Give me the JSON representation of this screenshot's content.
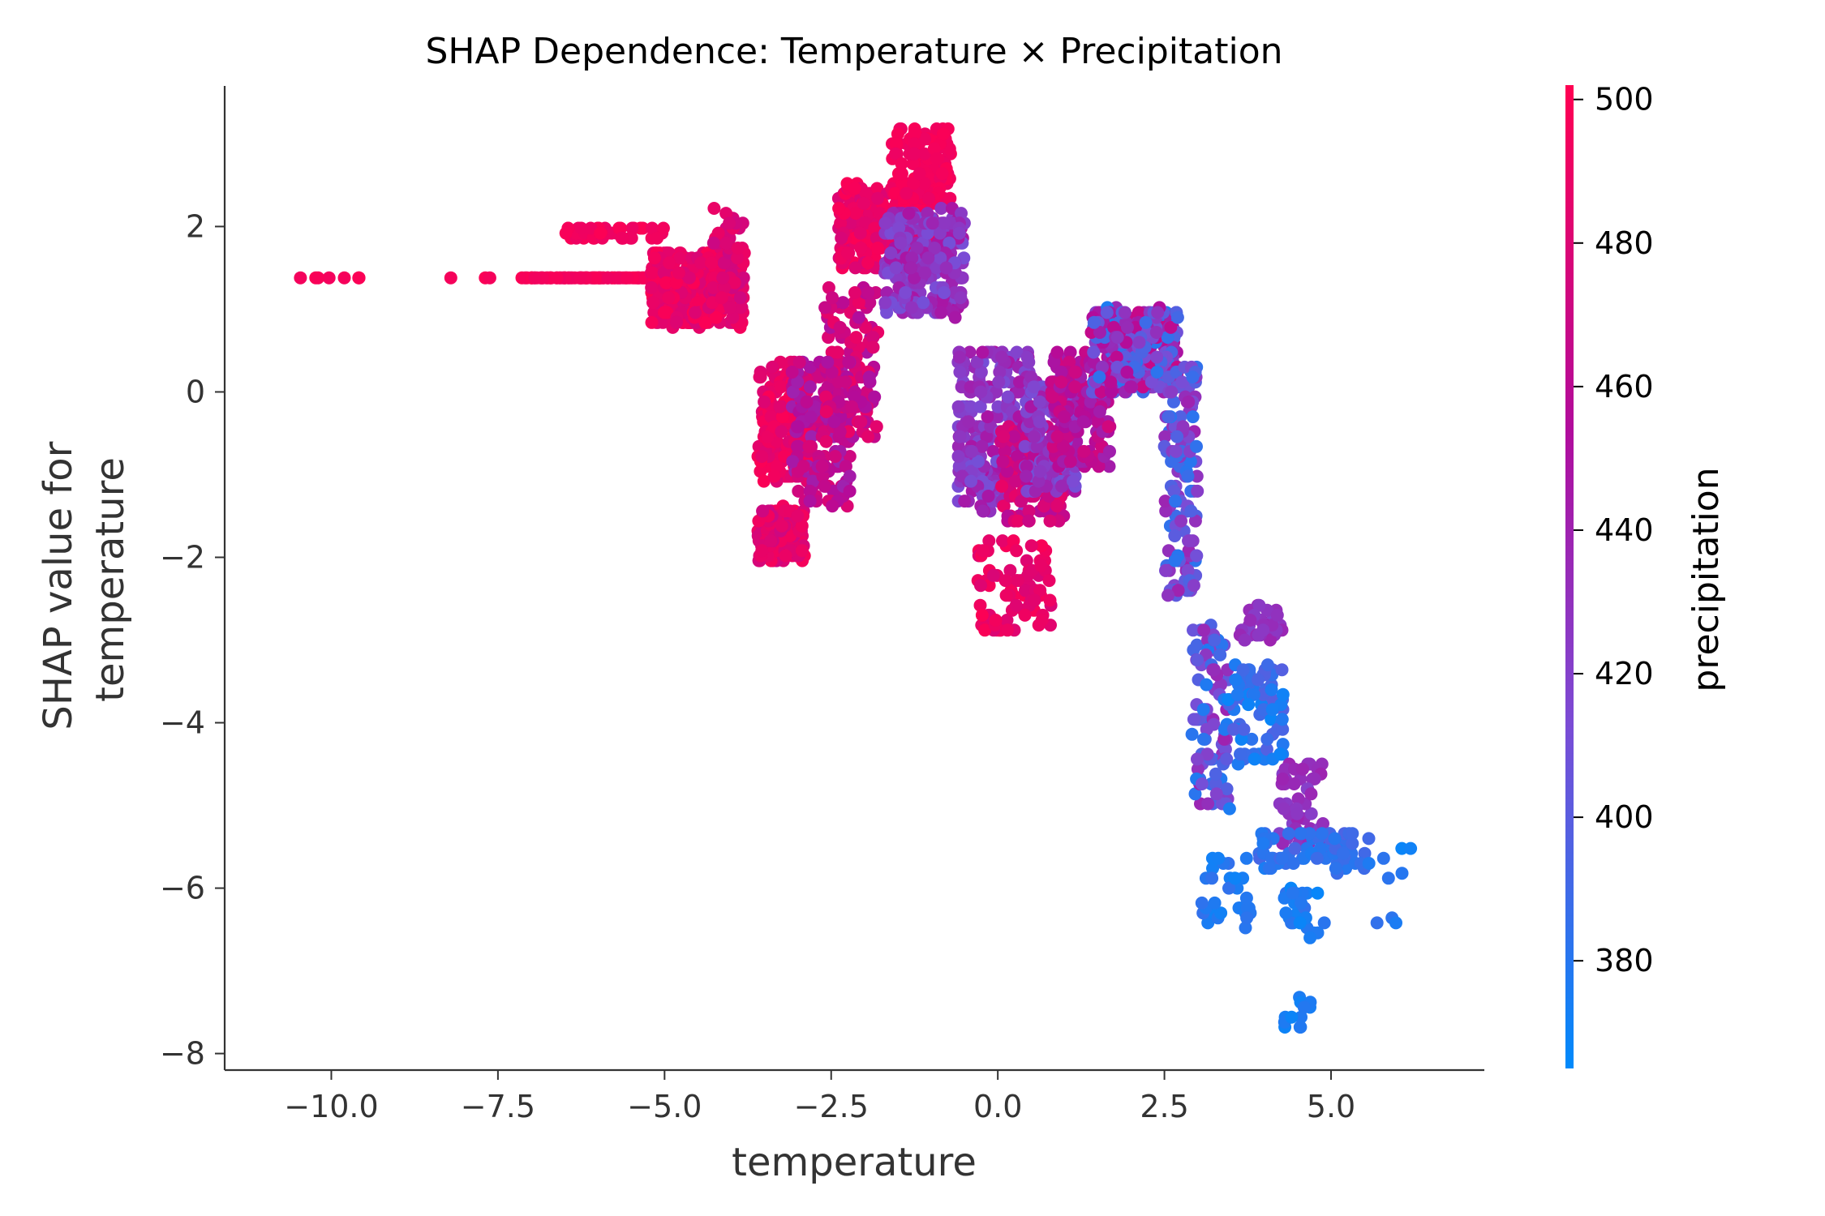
{
  "chart_data": {
    "type": "scatter",
    "title": "SHAP Dependence: Temperature × Precipitation",
    "xlabel": "temperature",
    "ylabel_lines": [
      "SHAP value for",
      "temperature"
    ],
    "xlim": [
      -11.6,
      7.3
    ],
    "ylim": [
      -8.2,
      3.7
    ],
    "xticks": [
      -10.0,
      -7.5,
      -5.0,
      -2.5,
      0.0,
      2.5,
      5.0
    ],
    "xtick_labels": [
      "−10.0",
      "−7.5",
      "−5.0",
      "−2.5",
      "0.0",
      "2.5",
      "5.0"
    ],
    "yticks": [
      2,
      0,
      -2,
      -4,
      -6,
      -8
    ],
    "ytick_labels": [
      "2",
      "0",
      "−2",
      "−4",
      "−6",
      "−8"
    ],
    "colorbar": {
      "label": "precipitation",
      "range": [
        365,
        502
      ],
      "ticks": [
        500,
        480,
        460,
        440,
        420,
        400,
        380
      ],
      "tick_labels": [
        "500",
        "480",
        "460",
        "440",
        "420",
        "400",
        "380"
      ],
      "colormap": [
        "#008afb",
        "#7b4cd5",
        "#b10c9c",
        "#ff0052"
      ]
    },
    "clusters": [
      {
        "x": [
          -10.6,
          -6.8
        ],
        "y": [
          1.35,
          1.4
        ],
        "n": 14,
        "p": [
          495,
          500
        ]
      },
      {
        "x": [
          -7.0,
          -5.2
        ],
        "y": [
          1.35,
          1.4
        ],
        "n": 80,
        "p": [
          492,
          500
        ]
      },
      {
        "x": [
          -6.5,
          -5.0
        ],
        "y": [
          1.85,
          2.0
        ],
        "n": 45,
        "p": [
          490,
          500
        ]
      },
      {
        "x": [
          -5.2,
          -3.8
        ],
        "y": [
          0.8,
          1.7
        ],
        "n": 380,
        "p": [
          478,
          500
        ]
      },
      {
        "x": [
          -4.3,
          -3.8
        ],
        "y": [
          1.0,
          2.2
        ],
        "n": 60,
        "p": [
          470,
          492
        ]
      },
      {
        "x": [
          -3.6,
          -2.9
        ],
        "y": [
          -2.05,
          -1.4
        ],
        "n": 140,
        "p": [
          470,
          498
        ]
      },
      {
        "x": [
          -3.6,
          -2.8
        ],
        "y": [
          -1.1,
          0.35
        ],
        "n": 160,
        "p": [
          480,
          500
        ]
      },
      {
        "x": [
          -3.1,
          -2.2
        ],
        "y": [
          -1.4,
          0.4
        ],
        "n": 150,
        "p": [
          440,
          480
        ]
      },
      {
        "x": [
          -2.6,
          -1.8
        ],
        "y": [
          -0.6,
          1.3
        ],
        "n": 120,
        "p": [
          450,
          490
        ]
      },
      {
        "x": [
          -2.4,
          -1.8
        ],
        "y": [
          1.5,
          2.5
        ],
        "n": 130,
        "p": [
          478,
          500
        ]
      },
      {
        "x": [
          -1.9,
          -0.9
        ],
        "y": [
          1.7,
          2.4
        ],
        "n": 110,
        "p": [
          480,
          500
        ]
      },
      {
        "x": [
          -1.6,
          -0.7
        ],
        "y": [
          2.3,
          3.2
        ],
        "n": 110,
        "p": [
          490,
          500
        ]
      },
      {
        "x": [
          -1.7,
          -0.5
        ],
        "y": [
          0.9,
          2.2
        ],
        "n": 260,
        "p": [
          410,
          450
        ]
      },
      {
        "x": [
          -0.6,
          0.5
        ],
        "y": [
          -1.5,
          0.5
        ],
        "n": 240,
        "p": [
          410,
          450
        ]
      },
      {
        "x": [
          -0.3,
          0.8
        ],
        "y": [
          -2.9,
          -1.8
        ],
        "n": 80,
        "p": [
          478,
          500
        ]
      },
      {
        "x": [
          0.0,
          1.0
        ],
        "y": [
          -1.6,
          -0.4
        ],
        "n": 120,
        "p": [
          455,
          490
        ]
      },
      {
        "x": [
          0.4,
          1.2
        ],
        "y": [
          -1.2,
          0.2
        ],
        "n": 150,
        "p": [
          410,
          450
        ]
      },
      {
        "x": [
          0.8,
          1.7
        ],
        "y": [
          -0.9,
          0.5
        ],
        "n": 150,
        "p": [
          440,
          475
        ]
      },
      {
        "x": [
          1.4,
          2.7
        ],
        "y": [
          0.0,
          1.0
        ],
        "n": 340,
        "p": [
          375,
          470
        ]
      },
      {
        "x": [
          2.5,
          3.0
        ],
        "y": [
          -2.5,
          0.3
        ],
        "n": 130,
        "p": [
          380,
          440
        ]
      },
      {
        "x": [
          2.9,
          3.5
        ],
        "y": [
          -5.1,
          -2.8
        ],
        "n": 90,
        "p": [
          375,
          440
        ]
      },
      {
        "x": [
          3.4,
          4.3
        ],
        "y": [
          -4.5,
          -3.3
        ],
        "n": 80,
        "p": [
          368,
          400
        ]
      },
      {
        "x": [
          3.6,
          4.3
        ],
        "y": [
          -3.0,
          -2.6
        ],
        "n": 40,
        "p": [
          420,
          440
        ]
      },
      {
        "x": [
          4.2,
          4.9
        ],
        "y": [
          -5.5,
          -4.5
        ],
        "n": 50,
        "p": [
          420,
          440
        ]
      },
      {
        "x": [
          3.9,
          5.6
        ],
        "y": [
          -5.8,
          -5.3
        ],
        "n": 70,
        "p": [
          375,
          395
        ]
      },
      {
        "x": [
          3.0,
          3.8
        ],
        "y": [
          -6.6,
          -5.6
        ],
        "n": 30,
        "p": [
          370,
          385
        ]
      },
      {
        "x": [
          4.3,
          4.9
        ],
        "y": [
          -6.6,
          -6.0
        ],
        "n": 25,
        "p": [
          368,
          385
        ]
      },
      {
        "x": [
          4.3,
          4.7
        ],
        "y": [
          -7.7,
          -7.3
        ],
        "n": 12,
        "p": [
          368,
          380
        ]
      },
      {
        "x": [
          5.2,
          6.2
        ],
        "y": [
          -6.8,
          -5.4
        ],
        "n": 8,
        "p": [
          368,
          385
        ]
      }
    ]
  }
}
